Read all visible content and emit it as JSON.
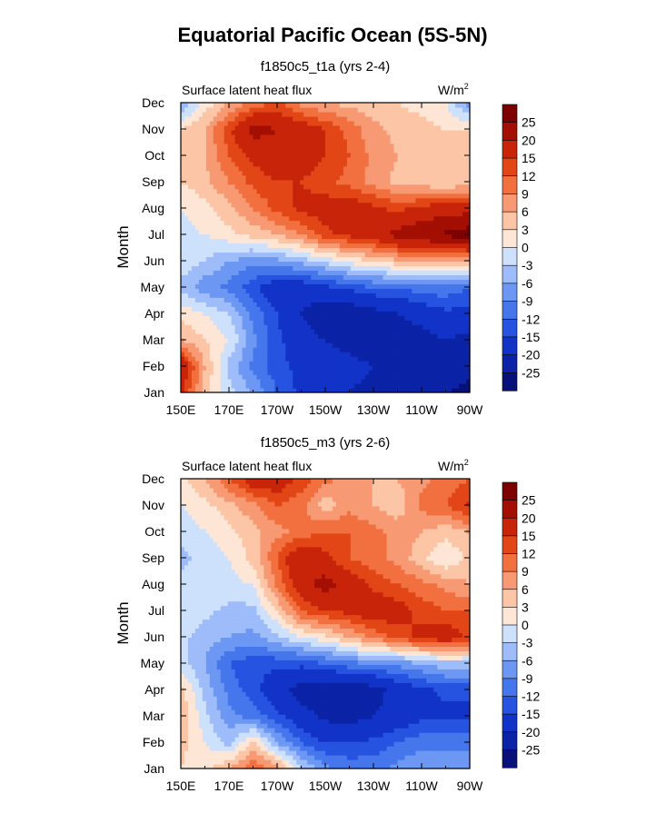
{
  "title": "Equatorial Pacific Ocean (5S-5N)",
  "colors": {
    "levels": [
      -25,
      -20,
      -15,
      -12,
      -9,
      -6,
      -3,
      0,
      3,
      6,
      9,
      12,
      15,
      20,
      25
    ],
    "fills": [
      "#08107a",
      "#0b23a6",
      "#1233c8",
      "#2653e0",
      "#4676ec",
      "#6c98f4",
      "#9dbcf9",
      "#cde0fc",
      "#fde6d6",
      "#fbc5a6",
      "#f79a74",
      "#f2703f",
      "#e24616",
      "#c8240a",
      "#a30f03",
      "#7c0000"
    ]
  },
  "chart_data": [
    {
      "type": "heatmap",
      "subtitle": "f1850c5_t1a (yrs 2-4)",
      "left_label": "Surface latent heat flux",
      "units_base": "W/m",
      "units_exp": "2",
      "ylabel": "Month",
      "x_tick_labels": [
        "150E",
        "170E",
        "170W",
        "150W",
        "130W",
        "110W",
        "90W"
      ],
      "y_tick_labels": [
        "Jan",
        "Feb",
        "Mar",
        "Apr",
        "May",
        "Jun",
        "Jul",
        "Aug",
        "Sep",
        "Oct",
        "Nov",
        "Dec"
      ],
      "x_range_deg_east": [
        150,
        270
      ],
      "y_range_month": [
        1,
        12
      ],
      "colorbar_labels": [
        "25",
        "20",
        "15",
        "12",
        "9",
        "6",
        "3",
        "0",
        "-3",
        "-6",
        "-9",
        "-12",
        "-15",
        "-20",
        "-25"
      ],
      "grid_lon_deg_east": [
        150,
        160,
        170,
        180,
        190,
        200,
        210,
        220,
        230,
        240,
        250,
        260,
        270
      ],
      "values": [
        [
          16,
          4,
          -2,
          -6,
          -12,
          -16,
          -18,
          -20,
          -22,
          -22,
          -24,
          -25,
          -26
        ],
        [
          20,
          6,
          -4,
          -10,
          -14,
          -16,
          -18,
          -18,
          -20,
          -22,
          -22,
          -22,
          -24
        ],
        [
          6,
          3,
          0,
          -8,
          -14,
          -18,
          -20,
          -22,
          -24,
          -24,
          -22,
          -20,
          -22
        ],
        [
          2,
          0,
          -3,
          -10,
          -15,
          -20,
          -24,
          -24,
          -22,
          -20,
          -18,
          -16,
          -16
        ],
        [
          -4,
          -8,
          -10,
          -14,
          -18,
          -18,
          -16,
          -14,
          -12,
          -12,
          -10,
          -10,
          -12
        ],
        [
          -1,
          -3,
          -6,
          -8,
          -7,
          -5,
          -2,
          1,
          3,
          5,
          6,
          5,
          6
        ],
        [
          -1,
          0,
          2,
          4,
          6,
          9,
          14,
          16,
          18,
          22,
          24,
          26,
          28
        ],
        [
          0,
          2,
          5,
          9,
          13,
          16,
          17,
          18,
          16,
          14,
          16,
          18,
          18
        ],
        [
          3,
          5,
          9,
          13,
          15,
          15,
          13,
          11,
          8,
          5,
          4,
          3,
          4
        ],
        [
          4,
          6,
          12,
          16,
          18,
          17,
          15,
          12,
          8,
          6,
          5,
          4,
          4
        ],
        [
          3,
          6,
          14,
          22,
          20,
          18,
          15,
          11,
          7,
          5,
          4,
          3,
          3
        ],
        [
          -6,
          1,
          6,
          10,
          13,
          8,
          6,
          5,
          4,
          3,
          2,
          0,
          -8
        ]
      ]
    },
    {
      "type": "heatmap",
      "subtitle": "f1850c5_m3 (yrs 2-6)",
      "left_label": "Surface latent heat flux",
      "units_base": "W/m",
      "units_exp": "2",
      "ylabel": "Month",
      "x_tick_labels": [
        "150E",
        "170E",
        "170W",
        "150W",
        "130W",
        "110W",
        "90W"
      ],
      "y_tick_labels": [
        "Jan",
        "Feb",
        "Mar",
        "Apr",
        "May",
        "Jun",
        "Jul",
        "Aug",
        "Sep",
        "Oct",
        "Nov",
        "Dec"
      ],
      "x_range_deg_east": [
        150,
        270
      ],
      "y_range_month": [
        1,
        12
      ],
      "colorbar_labels": [
        "25",
        "20",
        "15",
        "12",
        "9",
        "6",
        "3",
        "0",
        "-3",
        "-6",
        "-9",
        "-12",
        "-15",
        "-20",
        "-25"
      ],
      "grid_lon_deg_east": [
        150,
        160,
        170,
        180,
        190,
        200,
        210,
        220,
        230,
        240,
        250,
        260,
        270
      ],
      "values": [
        [
          3,
          2,
          6,
          12,
          8,
          -2,
          -8,
          -10,
          -10,
          -8,
          -6,
          -6,
          -6
        ],
        [
          4,
          0,
          -4,
          4,
          -6,
          -12,
          -15,
          -15,
          -14,
          -12,
          -10,
          -10,
          -10
        ],
        [
          6,
          -2,
          -8,
          -10,
          -14,
          -18,
          -21,
          -22,
          -20,
          -18,
          -16,
          -16,
          -16
        ],
        [
          4,
          -4,
          -10,
          -14,
          -18,
          -22,
          -24,
          -24,
          -22,
          -18,
          -16,
          -14,
          -14
        ],
        [
          -2,
          -6,
          -12,
          -14,
          -14,
          -14,
          -12,
          -10,
          -9,
          -8,
          -6,
          -4,
          -4
        ],
        [
          -2,
          -5,
          -6,
          -7,
          -4,
          0,
          2,
          6,
          10,
          13,
          16,
          18,
          14
        ],
        [
          0,
          -2,
          -4,
          -4,
          3,
          12,
          15,
          16,
          18,
          17,
          14,
          12,
          12
        ],
        [
          -2,
          0,
          -1,
          0,
          10,
          18,
          22,
          18,
          14,
          12,
          10,
          8,
          6
        ],
        [
          -4,
          -2,
          0,
          4,
          12,
          20,
          16,
          12,
          10,
          8,
          4,
          0,
          4
        ],
        [
          -2,
          0,
          2,
          5,
          8,
          10,
          12,
          12,
          10,
          8,
          6,
          4,
          6
        ],
        [
          0,
          2,
          5,
          8,
          12,
          10,
          4,
          8,
          6,
          4,
          10,
          12,
          16
        ],
        [
          2,
          6,
          12,
          18,
          18,
          14,
          10,
          8,
          6,
          6,
          8,
          10,
          12
        ]
      ]
    }
  ]
}
